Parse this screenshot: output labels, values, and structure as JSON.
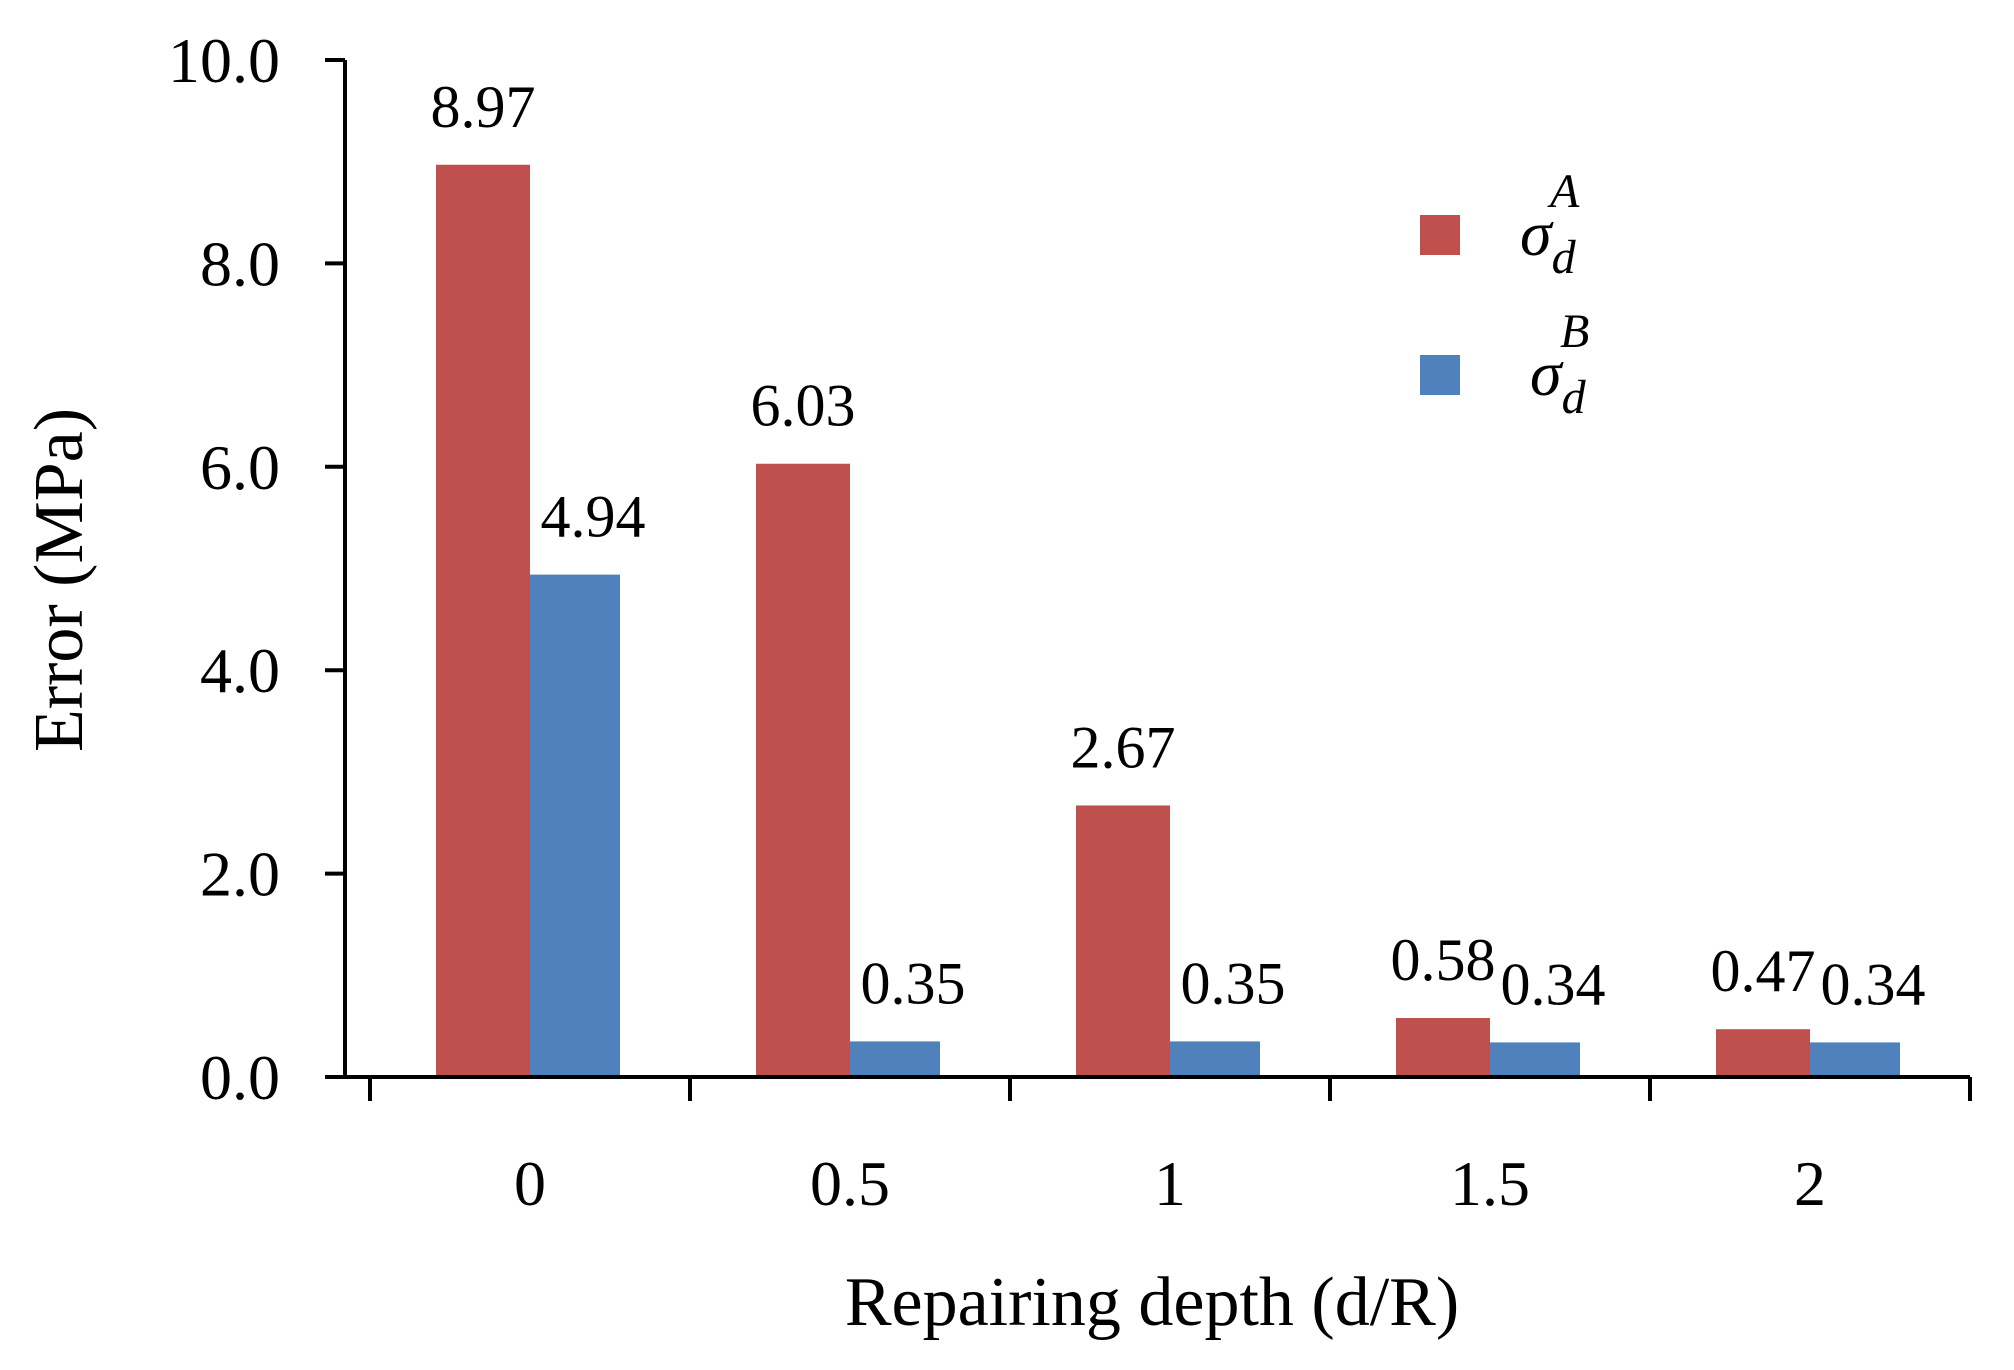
{
  "chart_data": {
    "type": "bar",
    "title": "",
    "xlabel": "Repairing depth (d/R)",
    "ylabel": "Error (MPa)",
    "categories": [
      "0",
      "0.5",
      "1",
      "1.5",
      "2"
    ],
    "ylim": [
      0,
      10
    ],
    "ytick_values": [
      0,
      2,
      4,
      6,
      8,
      10
    ],
    "ytick_labels": [
      "0.0",
      "2.0",
      "4.0",
      "6.0",
      "8.0",
      "10.0"
    ],
    "grid": false,
    "legend_position": "top-right",
    "series": [
      {
        "name": "σ_d^A",
        "symbol": "σ",
        "subscript": "d",
        "superscript": "A",
        "color": "#c0504d",
        "values": [
          8.97,
          6.03,
          2.67,
          0.58,
          0.47
        ],
        "value_labels": [
          "8.97",
          "6.03",
          "2.67",
          "0.58",
          "0.47"
        ]
      },
      {
        "name": "σ_d^B",
        "symbol": "σ",
        "subscript": "d",
        "superscript": "B",
        "color": "#4f81bd",
        "values": [
          4.94,
          0.35,
          0.35,
          0.34,
          0.34
        ],
        "value_labels": [
          "4.94",
          "0.35",
          "0.35",
          "0.34",
          "0.34"
        ]
      }
    ]
  }
}
